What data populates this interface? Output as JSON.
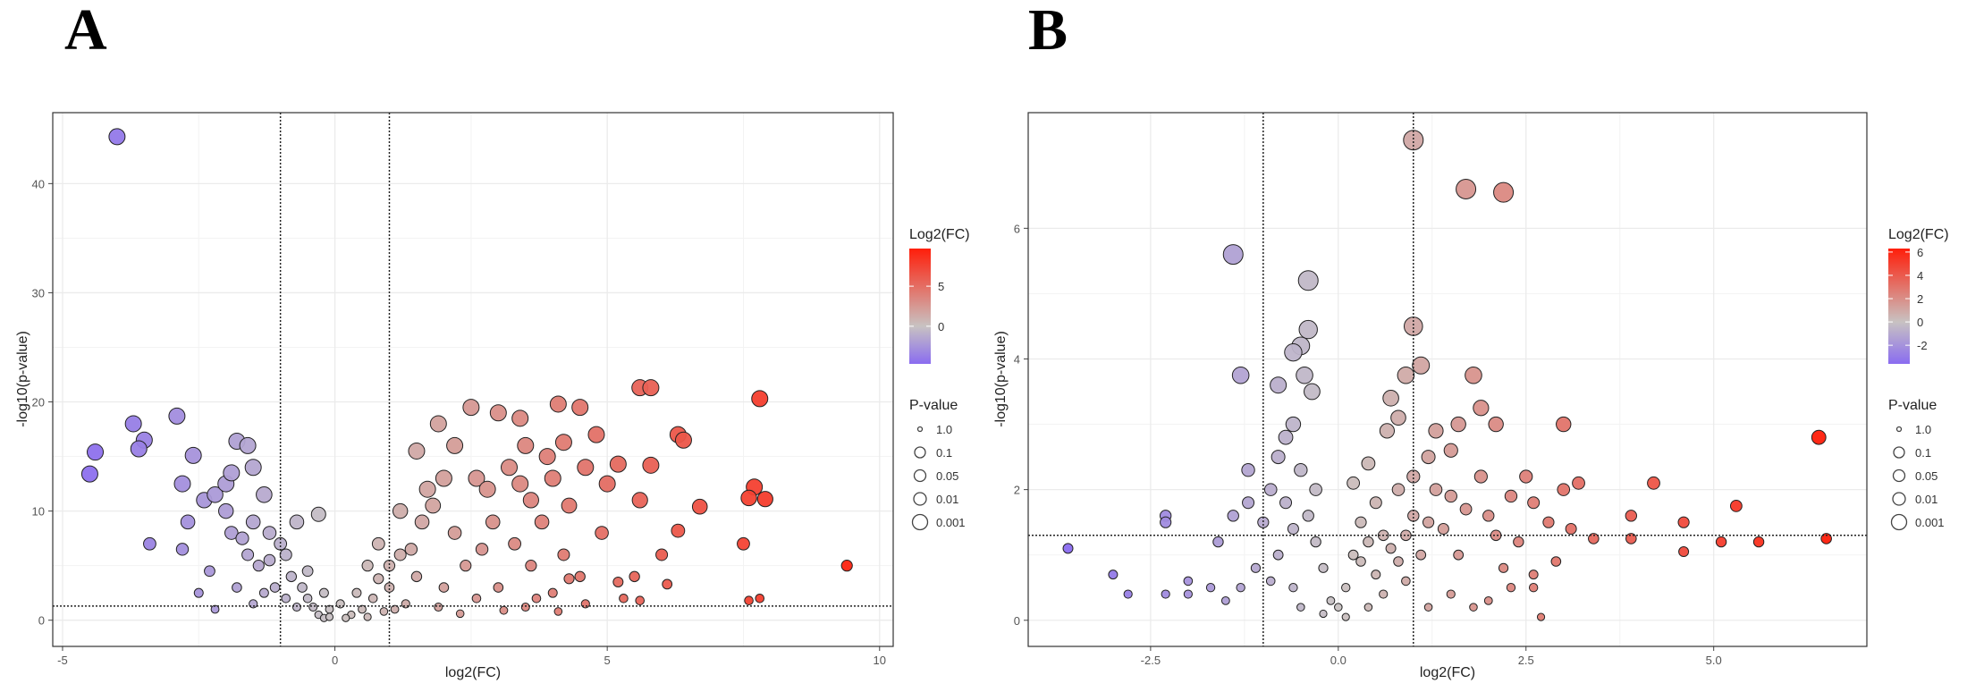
{
  "chart_data": [
    {
      "type": "scatter",
      "panel_label": "A",
      "title": "",
      "xlabel": "log2(FC)",
      "ylabel": "-log10(p-value)",
      "xlim": [
        -5.18,
        10.25
      ],
      "ylim": [
        -2.4,
        46.5
      ],
      "xticks": [
        -5,
        0,
        5,
        10
      ],
      "yticks": [
        0,
        10,
        20,
        30,
        40
      ],
      "vlines": [
        -1,
        1
      ],
      "hline": 1.3,
      "grid": true,
      "legend_placement": "right",
      "color_legend": {
        "title": "Log2(FC)",
        "range": [
          -4.7,
          9.7
        ],
        "ticks": [
          0,
          5
        ],
        "low": "#8a6cf0",
        "mid": "#c8c2c2",
        "high": "#ff1e0a"
      },
      "size_legend": {
        "title": "P-value",
        "labels": [
          "1.0",
          "0.1",
          "0.05",
          "0.01",
          "0.001"
        ]
      },
      "points": [
        [
          -4.0,
          44.3
        ],
        [
          -4.5,
          13.4
        ],
        [
          -4.4,
          15.4
        ],
        [
          -3.5,
          16.5
        ],
        [
          -3.6,
          15.7
        ],
        [
          -3.7,
          18
        ],
        [
          -2.9,
          18.7
        ],
        [
          -3.4,
          7
        ],
        [
          -2.8,
          6.5
        ],
        [
          -2.8,
          12.5
        ],
        [
          -2.6,
          15.1
        ],
        [
          -2.7,
          9
        ],
        [
          -2.4,
          11
        ],
        [
          -2.2,
          11.5
        ],
        [
          -2.0,
          12.5
        ],
        [
          -1.8,
          16.4
        ],
        [
          -1.6,
          16
        ],
        [
          -1.5,
          14
        ],
        [
          -2.0,
          10
        ],
        [
          -1.9,
          8
        ],
        [
          -1.7,
          7.5
        ],
        [
          -1.5,
          9
        ],
        [
          -1.3,
          11.5
        ],
        [
          -1.2,
          8
        ],
        [
          -1.4,
          5
        ],
        [
          -2.5,
          2.5
        ],
        [
          -2.2,
          1
        ],
        [
          -1.8,
          3
        ],
        [
          -1.5,
          1.5
        ],
        [
          -1.1,
          3
        ],
        [
          -0.9,
          6
        ],
        [
          -0.8,
          4
        ],
        [
          -0.6,
          3
        ],
        [
          -0.5,
          2
        ],
        [
          -0.4,
          1.2
        ],
        [
          -0.3,
          0.5
        ],
        [
          -0.2,
          0.2
        ],
        [
          -0.7,
          9
        ],
        [
          -0.3,
          9.7
        ],
        [
          -1.0,
          7
        ],
        [
          -1.2,
          5.5
        ],
        [
          -0.9,
          2
        ],
        [
          -0.7,
          1.2
        ],
        [
          -1.6,
          6
        ],
        [
          -2.3,
          4.5
        ],
        [
          -1.3,
          2.5
        ],
        [
          -0.5,
          4.5
        ],
        [
          -0.2,
          2.5
        ],
        [
          -0.1,
          1
        ],
        [
          -1.9,
          13.5
        ],
        [
          1.5,
          15.5
        ],
        [
          2.5,
          19.5
        ],
        [
          1.9,
          18
        ],
        [
          3.0,
          19
        ],
        [
          3.4,
          18.5
        ],
        [
          4.1,
          19.8
        ],
        [
          4.5,
          19.5
        ],
        [
          5.6,
          21.3
        ],
        [
          5.8,
          21.3
        ],
        [
          6.3,
          17
        ],
        [
          6.4,
          16.5
        ],
        [
          7.8,
          20.3
        ],
        [
          7.7,
          12.2
        ],
        [
          7.6,
          11.2
        ],
        [
          7.9,
          11.1
        ],
        [
          7.5,
          7
        ],
        [
          7.6,
          1.8
        ],
        [
          7.8,
          2
        ],
        [
          6.7,
          10.4
        ],
        [
          6.0,
          6
        ],
        [
          9.4,
          5
        ],
        [
          6.1,
          3.3
        ],
        [
          5.3,
          2
        ],
        [
          4.3,
          3.8
        ],
        [
          3.6,
          11
        ],
        [
          4.0,
          13
        ],
        [
          4.6,
          14
        ],
        [
          5.2,
          14.3
        ],
        [
          5.0,
          12.5
        ],
        [
          3.9,
          15
        ],
        [
          2.6,
          13
        ],
        [
          2.0,
          13
        ],
        [
          1.7,
          12
        ],
        [
          1.2,
          10
        ],
        [
          1.6,
          9
        ],
        [
          2.2,
          8
        ],
        [
          2.9,
          9
        ],
        [
          3.3,
          7
        ],
        [
          2.4,
          5
        ],
        [
          2.0,
          3
        ],
        [
          1.5,
          4
        ],
        [
          1.0,
          3
        ],
        [
          0.7,
          2
        ],
        [
          0.5,
          1
        ],
        [
          0.3,
          0.5
        ],
        [
          0.6,
          5
        ],
        [
          0.8,
          7
        ],
        [
          3.0,
          3
        ],
        [
          3.7,
          2
        ],
        [
          4.6,
          1.5
        ],
        [
          5.2,
          3.5
        ],
        [
          4.9,
          8
        ],
        [
          5.6,
          11
        ],
        [
          5.5,
          4
        ],
        [
          4.2,
          6
        ],
        [
          2.8,
          12
        ],
        [
          3.5,
          16
        ],
        [
          4.2,
          16.3
        ],
        [
          4.8,
          17
        ],
        [
          2.2,
          16
        ],
        [
          1.8,
          10.5
        ],
        [
          3.2,
          14
        ],
        [
          3.8,
          9
        ],
        [
          4.5,
          4
        ],
        [
          2.6,
          2
        ],
        [
          1.3,
          1.5
        ],
        [
          0.9,
          0.8
        ],
        [
          0.2,
          0.2
        ],
        [
          0.1,
          1.5
        ],
        [
          -0.1,
          0.3
        ],
        [
          1.0,
          5
        ],
        [
          1.4,
          6.5
        ],
        [
          2.7,
          6.5
        ],
        [
          3.6,
          5
        ],
        [
          4.0,
          2.5
        ],
        [
          5.6,
          1.8
        ],
        [
          6.3,
          8.2
        ],
        [
          5.8,
          14.2
        ],
        [
          4.3,
          10.5
        ],
        [
          3.4,
          12.5
        ],
        [
          0.4,
          2.5
        ],
        [
          0.6,
          0.3
        ],
        [
          1.1,
          1
        ],
        [
          1.9,
          1.2
        ],
        [
          2.3,
          0.6
        ],
        [
          3.1,
          0.9
        ],
        [
          3.5,
          1.2
        ],
        [
          4.1,
          0.8
        ],
        [
          0.8,
          3.8
        ],
        [
          1.2,
          6
        ]
      ]
    },
    {
      "type": "scatter",
      "panel_label": "B",
      "title": "",
      "xlabel": "log2(FC)",
      "ylabel": "-log10(p-value)",
      "xlim": [
        -4.13,
        7.04
      ],
      "ylim": [
        -0.4,
        7.77
      ],
      "xticks": [
        -2.5,
        0.0,
        2.5,
        5.0
      ],
      "xtick_labels": [
        "-2.5",
        "0.0",
        "2.5",
        "5.0"
      ],
      "yticks": [
        0,
        2,
        4,
        6
      ],
      "vlines": [
        -1,
        1
      ],
      "hline": 1.3,
      "grid": true,
      "legend_placement": "right",
      "color_legend": {
        "title": "Log2(FC)",
        "range": [
          -3.6,
          6.3
        ],
        "ticks": [
          -2,
          0,
          2,
          4,
          6
        ],
        "low": "#8a6cf0",
        "mid": "#c8c2c2",
        "high": "#ff1e0a"
      },
      "size_legend": {
        "title": "P-value",
        "labels": [
          "1.0",
          "0.1",
          "0.05",
          "0.01",
          "0.001"
        ]
      },
      "points": [
        [
          1.0,
          7.35
        ],
        [
          1.7,
          6.6
        ],
        [
          2.2,
          6.55
        ],
        [
          -1.4,
          5.6
        ],
        [
          -0.4,
          5.2
        ],
        [
          1.0,
          4.5
        ],
        [
          -0.4,
          4.45
        ],
        [
          -0.5,
          4.2
        ],
        [
          -0.6,
          4.1
        ],
        [
          -0.45,
          3.75
        ],
        [
          -1.3,
          3.75
        ],
        [
          -0.35,
          3.5
        ],
        [
          -0.8,
          3.6
        ],
        [
          -0.6,
          3.0
        ],
        [
          -0.7,
          2.8
        ],
        [
          -0.8,
          2.5
        ],
        [
          -0.5,
          2.3
        ],
        [
          -0.3,
          2.0
        ],
        [
          0.9,
          3.75
        ],
        [
          1.1,
          3.9
        ],
        [
          1.8,
          3.75
        ],
        [
          0.7,
          3.4
        ],
        [
          0.8,
          3.1
        ],
        [
          0.65,
          2.9
        ],
        [
          1.6,
          3.0
        ],
        [
          1.9,
          3.25
        ],
        [
          2.1,
          3.0
        ],
        [
          3.0,
          3.0
        ],
        [
          1.3,
          2.9
        ],
        [
          1.5,
          2.6
        ],
        [
          1.2,
          2.5
        ],
        [
          1.0,
          2.2
        ],
        [
          0.8,
          2.0
        ],
        [
          0.5,
          1.8
        ],
        [
          0.3,
          1.5
        ],
        [
          0.2,
          1.0
        ],
        [
          0.1,
          0.5
        ],
        [
          0.0,
          0.2
        ],
        [
          0.1,
          0.05
        ],
        [
          -0.1,
          0.3
        ],
        [
          -0.2,
          0.8
        ],
        [
          -0.3,
          1.2
        ],
        [
          -0.4,
          1.6
        ],
        [
          -0.6,
          1.4
        ],
        [
          -0.8,
          1.0
        ],
        [
          -1.0,
          1.5
        ],
        [
          -1.2,
          1.8
        ],
        [
          -1.1,
          0.8
        ],
        [
          -1.3,
          0.5
        ],
        [
          -1.5,
          0.3
        ],
        [
          -1.7,
          0.5
        ],
        [
          -2.0,
          0.4
        ],
        [
          -2.3,
          0.4
        ],
        [
          -2.3,
          1.6
        ],
        [
          -2.3,
          1.5
        ],
        [
          -3.6,
          1.1
        ],
        [
          -3.0,
          0.7
        ],
        [
          -2.8,
          0.4
        ],
        [
          -2.0,
          0.6
        ],
        [
          -1.6,
          1.2
        ],
        [
          -1.4,
          1.6
        ],
        [
          -1.2,
          2.3
        ],
        [
          -0.9,
          2.0
        ],
        [
          6.4,
          2.8
        ],
        [
          6.5,
          1.25
        ],
        [
          5.6,
          1.2
        ],
        [
          5.1,
          1.2
        ],
        [
          5.3,
          1.75
        ],
        [
          4.6,
          1.5
        ],
        [
          4.6,
          1.05
        ],
        [
          4.2,
          2.1
        ],
        [
          3.9,
          1.6
        ],
        [
          3.9,
          1.25
        ],
        [
          3.4,
          1.25
        ],
        [
          3.2,
          2.1
        ],
        [
          3.0,
          2.0
        ],
        [
          2.8,
          1.5
        ],
        [
          2.6,
          1.8
        ],
        [
          2.5,
          2.2
        ],
        [
          2.4,
          1.2
        ],
        [
          2.2,
          0.8
        ],
        [
          2.0,
          0.3
        ],
        [
          2.3,
          0.5
        ],
        [
          2.7,
          0.05
        ],
        [
          2.6,
          0.5
        ],
        [
          2.6,
          0.7
        ],
        [
          1.8,
          0.2
        ],
        [
          1.5,
          0.4
        ],
        [
          1.2,
          0.2
        ],
        [
          0.9,
          0.6
        ],
        [
          0.6,
          0.4
        ],
        [
          0.4,
          0.2
        ],
        [
          1.4,
          1.4
        ],
        [
          1.7,
          1.7
        ],
        [
          1.9,
          2.2
        ],
        [
          2.1,
          1.3
        ],
        [
          1.6,
          1.0
        ],
        [
          1.1,
          1.0
        ],
        [
          0.7,
          1.1
        ],
        [
          0.5,
          0.7
        ],
        [
          0.3,
          0.9
        ],
        [
          -0.2,
          0.1
        ],
        [
          3.1,
          1.4
        ],
        [
          2.9,
          0.9
        ],
        [
          1.3,
          2.0
        ],
        [
          1.0,
          1.6
        ],
        [
          0.2,
          2.1
        ],
        [
          0.4,
          2.4
        ],
        [
          -0.6,
          0.5
        ],
        [
          -0.5,
          0.2
        ],
        [
          0.6,
          1.3
        ],
        [
          0.9,
          1.3
        ],
        [
          1.2,
          1.5
        ],
        [
          1.5,
          1.9
        ],
        [
          2.0,
          1.6
        ],
        [
          2.3,
          1.9
        ],
        [
          0.8,
          0.9
        ],
        [
          0.4,
          1.2
        ],
        [
          -0.7,
          1.8
        ],
        [
          -0.9,
          0.6
        ]
      ]
    }
  ]
}
